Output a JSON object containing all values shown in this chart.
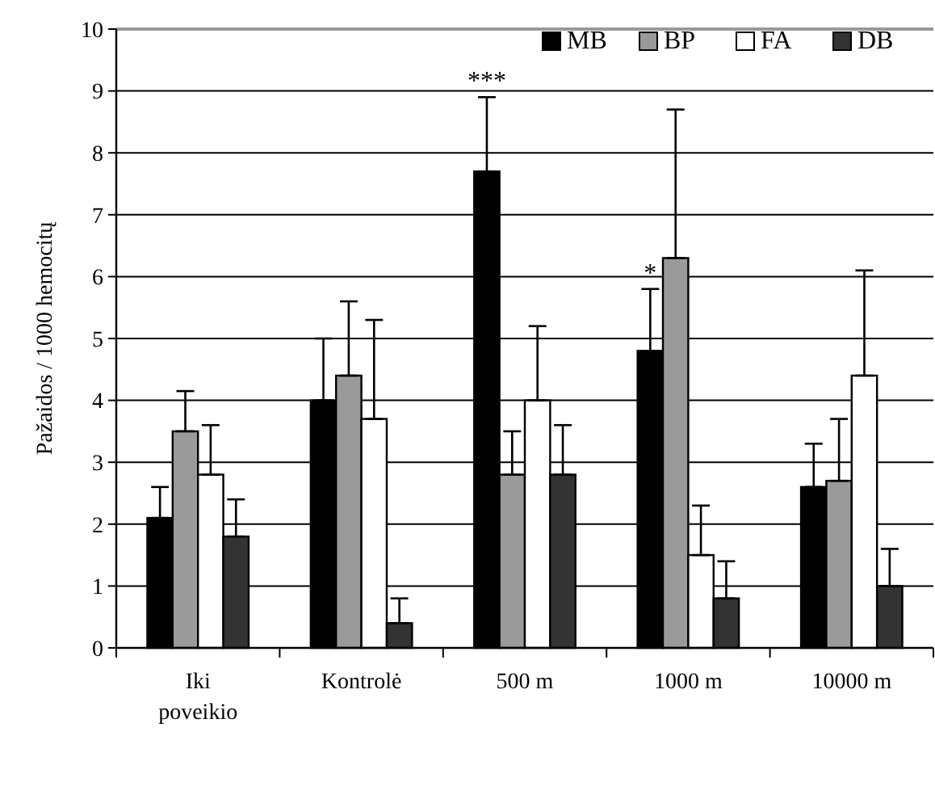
{
  "chart_data": {
    "type": "bar",
    "ylabel": "Pažaidos / 1000 hemocitų",
    "categories": [
      "Iki poveikio",
      "Kontrolė",
      "500 m",
      "1000 m",
      "10000 m"
    ],
    "series": [
      {
        "name": "MB",
        "color": "#000000",
        "values": [
          2.1,
          4.0,
          7.7,
          4.8,
          2.6
        ],
        "errors": [
          [
            2.1,
            2.6
          ],
          [
            4.0,
            5.0
          ],
          [
            7.7,
            8.9
          ],
          [
            4.8,
            5.8
          ],
          [
            2.6,
            3.3
          ]
        ]
      },
      {
        "name": "BP",
        "color": "#9a9a9a",
        "values": [
          3.5,
          4.4,
          2.8,
          6.3,
          2.7
        ],
        "errors": [
          [
            3.5,
            4.15
          ],
          [
            4.4,
            5.6
          ],
          [
            2.8,
            3.5
          ],
          [
            6.3,
            8.7
          ],
          [
            2.7,
            3.7
          ]
        ]
      },
      {
        "name": "FA",
        "color": "#ffffff",
        "values": [
          2.8,
          3.7,
          4.0,
          1.5,
          4.4
        ],
        "errors": [
          [
            2.8,
            3.6
          ],
          [
            3.7,
            5.3
          ],
          [
            4.0,
            5.2
          ],
          [
            1.5,
            2.3
          ],
          [
            4.4,
            6.1
          ]
        ]
      },
      {
        "name": "DB",
        "color": "#333333",
        "values": [
          1.8,
          0.4,
          2.8,
          0.8,
          1.0
        ],
        "errors": [
          [
            1.8,
            2.4
          ],
          [
            0.4,
            0.8
          ],
          [
            2.8,
            3.6
          ],
          [
            0.8,
            1.4
          ],
          [
            1.0,
            1.6
          ]
        ]
      }
    ],
    "annotations": [
      "***",
      {
        "text": "*",
        "x": "1000 m",
        "y": 5.8
      }
    ],
    "ylim": [
      0,
      10
    ],
    "yticks": [
      0,
      1,
      2,
      3,
      4,
      5,
      6,
      7,
      8,
      9,
      10
    ],
    "grid": "y",
    "legend": "top right"
  }
}
